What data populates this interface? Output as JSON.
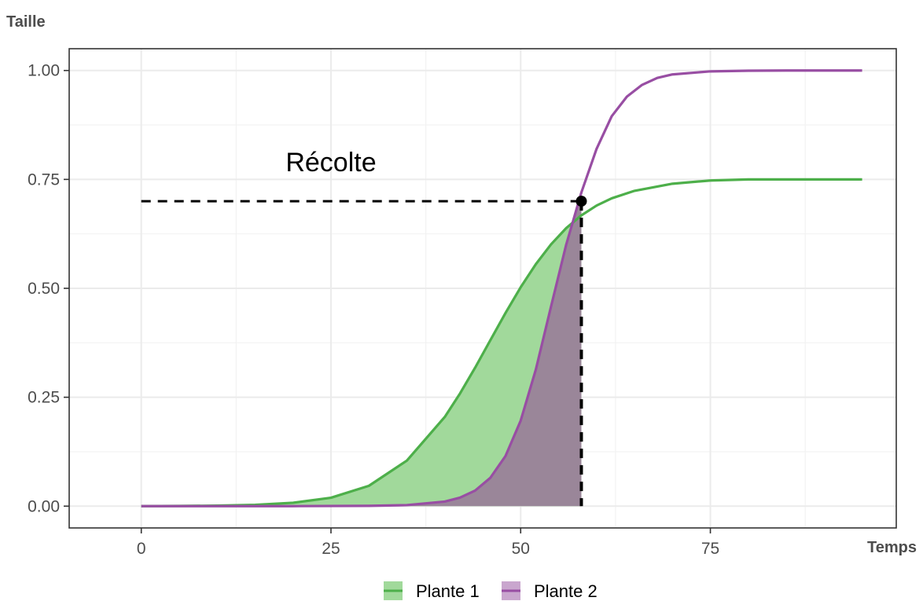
{
  "chart_data": {
    "type": "line",
    "xlabel": "Temps",
    "ylabel": "Taille",
    "xlim": [
      -9.5,
      99.5
    ],
    "ylim": [
      -0.05,
      1.05
    ],
    "xticks": [
      0,
      25,
      50,
      75
    ],
    "yticks": [
      0.0,
      0.25,
      0.5,
      0.75,
      1.0
    ],
    "ytick_labels": [
      "0.00",
      "0.25",
      "0.50",
      "0.75",
      "1.00"
    ],
    "grid": true,
    "legend_position": "bottom",
    "series": [
      {
        "name": "Plante 1",
        "color": "#4daf4a",
        "fill_color": "#a1d99b",
        "x": [
          0,
          5,
          10,
          15,
          20,
          25,
          30,
          35,
          40,
          42,
          44,
          46,
          48,
          50,
          52,
          54,
          56,
          58,
          60,
          62,
          65,
          70,
          75,
          80,
          85,
          90,
          95
        ],
        "y": [
          0.0,
          0.0005,
          0.0012,
          0.0031,
          0.0078,
          0.0193,
          0.0467,
          0.1046,
          0.2048,
          0.2584,
          0.3179,
          0.3807,
          0.4433,
          0.5024,
          0.5555,
          0.6009,
          0.6382,
          0.6675,
          0.6899,
          0.7066,
          0.7238,
          0.7401,
          0.7475,
          0.75,
          0.75,
          0.75,
          0.75
        ]
      },
      {
        "name": "Plante 2",
        "color": "#984ea3",
        "fill_color": "#9a8699",
        "x": [
          0,
          10,
          20,
          30,
          35,
          40,
          42,
          44,
          46,
          48,
          50,
          52,
          54,
          56,
          58,
          60,
          62,
          64,
          66,
          68,
          70,
          75,
          80,
          85,
          90,
          95
        ],
        "y": [
          0.0,
          0.0,
          0.0001,
          0.0007,
          0.0024,
          0.0105,
          0.0195,
          0.0358,
          0.065,
          0.115,
          0.1962,
          0.3136,
          0.458,
          0.6002,
          0.72,
          0.82,
          0.895,
          0.94,
          0.967,
          0.983,
          0.991,
          0.998,
          0.9995,
          1.0,
          1.0,
          1.0
        ]
      }
    ],
    "harvest": {
      "label": "Récolte",
      "x": 58,
      "y": 0.7,
      "label_x": 25,
      "label_y": 0.79
    }
  }
}
